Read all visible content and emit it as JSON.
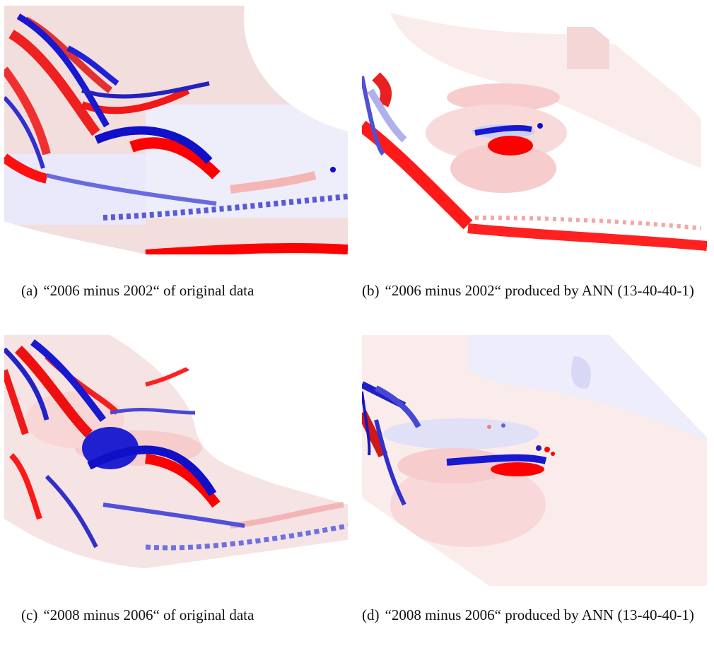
{
  "figure": {
    "panels": [
      {
        "id": "a",
        "label": "(a)",
        "caption": "“2006 minus 2002“ of original data",
        "source": "original data"
      },
      {
        "id": "b",
        "label": "(b)",
        "caption": "“2006 minus 2002“ produced by ANN (13-40-40-1)",
        "source": "ANN (13-40-40-1)"
      },
      {
        "id": "c",
        "label": "(c)",
        "caption": "“2008 minus 2006“ of original data",
        "source": "original data"
      },
      {
        "id": "d",
        "label": "(d)",
        "caption": "“2008 minus 2006“ produced by ANN (13-40-40-1)",
        "source": "ANN (13-40-40-1)"
      }
    ],
    "colors": {
      "positive": "#ff0000",
      "negative": "#1010d0",
      "neutral": "#ffffff",
      "light_positive": "#f7c8c8",
      "light_negative": "#c8c8f2"
    }
  }
}
